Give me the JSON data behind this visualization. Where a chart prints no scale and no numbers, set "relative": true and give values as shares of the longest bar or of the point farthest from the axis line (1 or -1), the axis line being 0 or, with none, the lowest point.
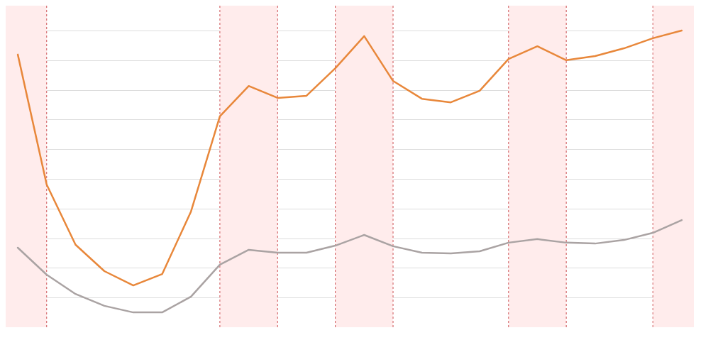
{
  "chart_data": {
    "type": "line",
    "relative": true,
    "grid": true,
    "categories": [
      null,
      null,
      null,
      null,
      null,
      null,
      null,
      null,
      null,
      null,
      null,
      null,
      null,
      null,
      null,
      null,
      null,
      null,
      null,
      null,
      null,
      null,
      null,
      null
    ],
    "series": [
      {
        "color": "#e8873a",
        "values": [
          0.919,
          0.481,
          0.278,
          0.189,
          0.141,
          0.179,
          0.39,
          0.711,
          0.813,
          0.773,
          0.78,
          0.873,
          0.981,
          0.83,
          0.77,
          0.758,
          0.797,
          0.904,
          0.947,
          0.9,
          0.914,
          0.94,
          0.974,
          1
        ]
      },
      {
        "color": "#aaa3a3",
        "values": [
          0.268,
          0.177,
          0.112,
          0.072,
          0.05,
          0.05,
          0.103,
          0.211,
          0.261,
          0.251,
          0.251,
          0.275,
          0.311,
          0.273,
          0.251,
          0.249,
          0.256,
          0.285,
          0.297,
          0.285,
          0.282,
          0.294,
          0.318,
          0.361
        ]
      }
    ]
  }
}
